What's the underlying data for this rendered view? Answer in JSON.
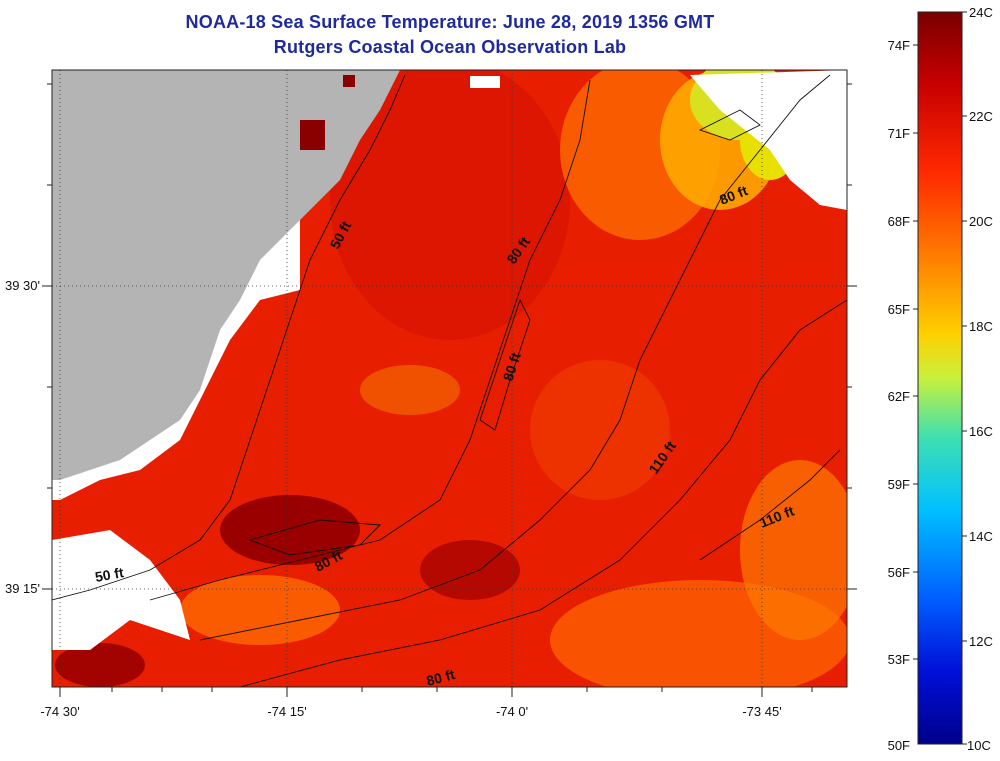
{
  "title": "NOAA-18 Sea Surface Temperature:  June 28, 2019 1356 GMT",
  "subtitle": "Rutgers Coastal Ocean Observation Lab",
  "axes": {
    "x_ticks": [
      "-74 30'",
      "-74 15'",
      "-74 0'",
      "-73 45'"
    ],
    "y_ticks": [
      "39 30'",
      "39 15'"
    ]
  },
  "contour_labels": [
    "50 ft",
    "80 ft",
    "80 ft",
    "80 ft",
    "110 ft",
    "110 ft",
    "50 ft",
    "80 ft",
    "80 ft"
  ],
  "colorbar": {
    "fahrenheit_ticks": [
      "74F",
      "71F",
      "68F",
      "65F",
      "62F",
      "59F",
      "56F",
      "53F",
      "50F"
    ],
    "celsius_ticks": [
      "24C",
      "22C",
      "20C",
      "18C",
      "16C",
      "14C",
      "12C",
      "10C"
    ],
    "colors": [
      "#7a0000",
      "#c80000",
      "#ff2a00",
      "#ff7a00",
      "#ffd000",
      "#c8f03c",
      "#40e0b0",
      "#00c0ff",
      "#0060ff",
      "#0010d8",
      "#00008a"
    ]
  },
  "colors": {
    "land": "#b4b4b4",
    "title": "#1f2a9c"
  }
}
